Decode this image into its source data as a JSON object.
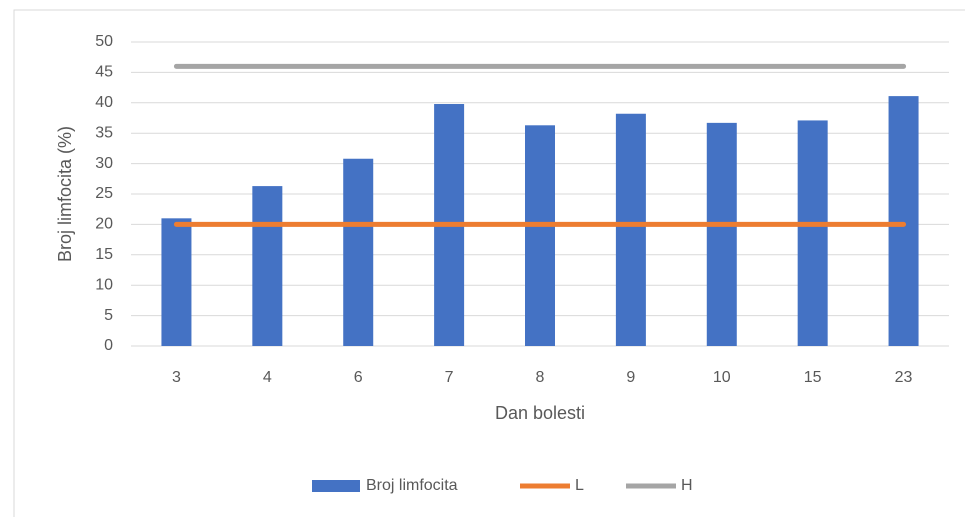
{
  "chart_data": {
    "type": "bar",
    "y_label": "Broj limfocita (%)",
    "x_label": "Dan bolesti",
    "categories": [
      "3",
      "4",
      "6",
      "7",
      "8",
      "9",
      "10",
      "15",
      "23"
    ],
    "series": [
      {
        "name": "Broj limfocita",
        "type": "bar",
        "color": "#4472c4",
        "values": [
          21,
          26.3,
          30.8,
          39.8,
          36.3,
          38.2,
          36.7,
          37.1,
          41.1
        ]
      },
      {
        "name": "L",
        "type": "line",
        "color": "#ed7d31",
        "values": [
          20,
          20,
          20,
          20,
          20,
          20,
          20,
          20,
          20
        ]
      },
      {
        "name": "H",
        "type": "line",
        "color": "#a5a5a5",
        "values": [
          46,
          46,
          46,
          46,
          46,
          46,
          46,
          46,
          46
        ]
      }
    ],
    "ylim": [
      0,
      50
    ],
    "yticks": [
      0,
      5,
      10,
      15,
      20,
      25,
      30,
      35,
      40,
      45,
      50
    ],
    "grid": true,
    "legend": "bottom"
  }
}
